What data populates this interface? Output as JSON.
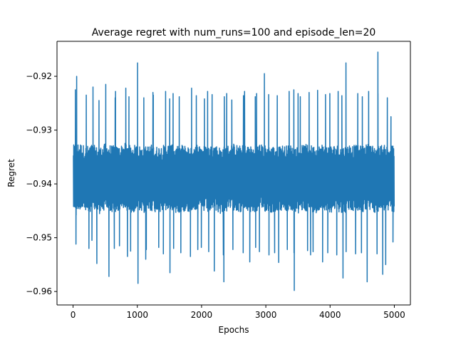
{
  "chart_data": {
    "type": "line",
    "title": "Average regret with num_runs=100 and episode_len=20",
    "xlabel": "Epochs",
    "ylabel": "Regret",
    "xlim": [
      -250,
      5250
    ],
    "ylim": [
      -0.9625,
      -0.9135
    ],
    "x_ticks": [
      0,
      1000,
      2000,
      3000,
      4000,
      5000
    ],
    "x_tick_labels": [
      "0",
      "1000",
      "2000",
      "3000",
      "4000",
      "5000"
    ],
    "y_ticks": [
      -0.96,
      -0.95,
      -0.94,
      -0.93,
      -0.92
    ],
    "y_tick_labels": [
      "−0.96",
      "−0.95",
      "−0.94",
      "−0.93",
      "−0.92"
    ],
    "grid": false,
    "series": [
      {
        "color": "#1f77b4",
        "x": [
          0,
          100,
          200,
          300,
          400,
          500,
          600,
          700,
          800,
          900,
          1000,
          1100,
          1200,
          1300,
          1400,
          1500,
          1600,
          1700,
          1800,
          1900,
          2000,
          2100,
          2200,
          2300,
          2400,
          2500,
          2600,
          2700,
          2800,
          2900,
          3000,
          3100,
          3200,
          3300,
          3400,
          3500,
          3600,
          3700,
          3800,
          3900,
          4000,
          4100,
          4200,
          4300,
          4400,
          4500,
          4600,
          4700,
          4800,
          4900,
          5000
        ],
        "mean": [
          -0.939,
          -0.9385,
          -0.9392,
          -0.9388,
          -0.9395,
          -0.9387,
          -0.939,
          -0.9393,
          -0.9386,
          -0.9391,
          -0.9389,
          -0.9394,
          -0.9388,
          -0.9392,
          -0.939,
          -0.9387,
          -0.9393,
          -0.9389,
          -0.9391,
          -0.9386,
          -0.939,
          -0.9392,
          -0.9388,
          -0.9394,
          -0.939,
          -0.9387,
          -0.9391,
          -0.9389,
          -0.9393,
          -0.9388,
          -0.939,
          -0.9392,
          -0.9387,
          -0.9391,
          -0.9389,
          -0.9394,
          -0.9388,
          -0.939,
          -0.9392,
          -0.9386,
          -0.9391,
          -0.9389,
          -0.9393,
          -0.9388,
          -0.939,
          -0.9391,
          -0.9387,
          -0.9392,
          -0.9389,
          -0.9391,
          -0.939
        ],
        "max": [
          -0.92,
          -0.9225,
          -0.9235,
          -0.922,
          -0.9245,
          -0.9215,
          -0.924,
          -0.9228,
          -0.9222,
          -0.9238,
          -0.9175,
          -0.924,
          -0.923,
          -0.9235,
          -0.9228,
          -0.9242,
          -0.9232,
          -0.9238,
          -0.9222,
          -0.9236,
          -0.9242,
          -0.9228,
          -0.9234,
          -0.9238,
          -0.9232,
          -0.9244,
          -0.9236,
          -0.9228,
          -0.9232,
          -0.9238,
          -0.9195,
          -0.9234,
          -0.9236,
          -0.9228,
          -0.9225,
          -0.9232,
          -0.9238,
          -0.923,
          -0.9226,
          -0.9234,
          -0.9232,
          -0.9228,
          -0.9236,
          -0.9175,
          -0.9232,
          -0.9238,
          -0.9228,
          -0.9232,
          -0.9155,
          -0.924,
          -0.9275
        ],
        "min": [
          -0.9458,
          -0.9512,
          -0.952,
          -0.9505,
          -0.9548,
          -0.9572,
          -0.952,
          -0.9515,
          -0.9535,
          -0.9525,
          -0.9585,
          -0.954,
          -0.9522,
          -0.9518,
          -0.953,
          -0.9565,
          -0.952,
          -0.9528,
          -0.9535,
          -0.9522,
          -0.9518,
          -0.9526,
          -0.9562,
          -0.9532,
          -0.9582,
          -0.9522,
          -0.9528,
          -0.9545,
          -0.9518,
          -0.9526,
          -0.9532,
          -0.9528,
          -0.9546,
          -0.9522,
          -0.9598,
          -0.9528,
          -0.9524,
          -0.9532,
          -0.9526,
          -0.9545,
          -0.9528,
          -0.9532,
          -0.9575,
          -0.9526,
          -0.953,
          -0.9528,
          -0.9582,
          -0.953,
          -0.9568,
          -0.955,
          -0.9508
        ]
      }
    ]
  }
}
